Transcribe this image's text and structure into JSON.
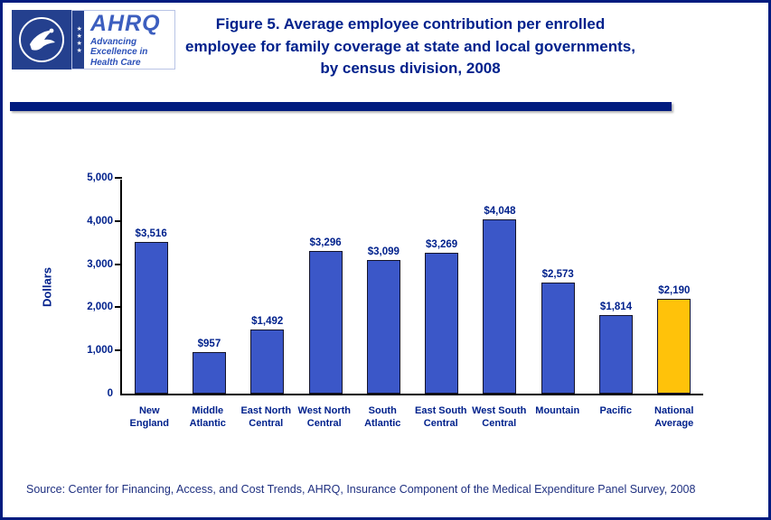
{
  "header": {
    "title": "Figure 5. Average employee contribution per enrolled employee for family coverage at state and local governments, by census division, 2008",
    "hhs": {
      "stars": "★★★★"
    },
    "ahrq": {
      "acronym": "AHRQ",
      "tagline": "Advancing Excellence in Health Care"
    }
  },
  "chart_data": {
    "type": "bar",
    "title": "Average employee contribution per enrolled employee for family coverage at state and local governments, by census division, 2008",
    "categories": [
      "New England",
      "Middle Atlantic",
      "East North Central",
      "West North Central",
      "South Atlantic",
      "East South Central",
      "West South Central",
      "Mountain",
      "Pacific",
      "National Average"
    ],
    "category_lines": [
      [
        "New",
        "England"
      ],
      [
        "Middle",
        "Atlantic"
      ],
      [
        "East North",
        "Central"
      ],
      [
        "West North",
        "Central"
      ],
      [
        "South",
        "Atlantic"
      ],
      [
        "East South",
        "Central"
      ],
      [
        "West South",
        "Central"
      ],
      [
        "Mountain"
      ],
      [
        "Pacific"
      ],
      [
        "National",
        "Average"
      ]
    ],
    "values": [
      3516,
      957,
      1492,
      3296,
      3099,
      3269,
      4048,
      2573,
      1814,
      2190
    ],
    "value_labels": [
      "$3,516",
      "$957",
      "$1,492",
      "$3,296",
      "$3,099",
      "$3,269",
      "$4,048",
      "$2,573",
      "$1,814",
      "$2,190"
    ],
    "xlabel": "",
    "ylabel": "Dollars",
    "ylim": [
      0,
      5000
    ],
    "yticks": [
      0,
      1000,
      2000,
      3000,
      4000,
      5000
    ],
    "ytick_labels": [
      "0",
      "1,000",
      "2,000",
      "3,000",
      "4,000",
      "5,000"
    ],
    "grid": false,
    "legend": false,
    "bar_color": "#3B57C8",
    "highlight_color": "#FFC20A",
    "highlight_index": 9
  },
  "source": "Source: Center for Financing, Access, and Cost Trends, AHRQ, Insurance Component of the Medical Expenditure Panel Survey, 2008"
}
